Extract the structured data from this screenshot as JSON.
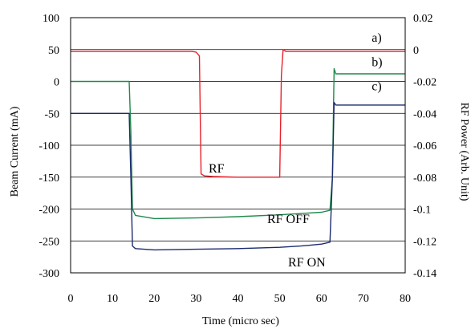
{
  "chart_data": {
    "type": "line",
    "xlabel": "Time (micro sec)",
    "ylabel_left": "Beam Current (mA)",
    "ylabel_right": "RF Power (Arb. Unit)",
    "xlim": [
      0,
      80
    ],
    "ylim_left": [
      -300,
      100
    ],
    "ylim_right": [
      -0.14,
      0.02
    ],
    "x_ticks": [
      0,
      10,
      20,
      30,
      40,
      50,
      60,
      70,
      80
    ],
    "y_left_ticks": [
      100,
      50,
      0,
      -50,
      -100,
      -150,
      -200,
      -250,
      -300
    ],
    "y_right_ticks": [
      "0.02",
      "0",
      "-0.02",
      "-0.04",
      "-0.06",
      "-0.08",
      "-0.1",
      "-0.12",
      "-0.14"
    ],
    "grid": "horizontal",
    "annotations": [
      {
        "text": "a)",
        "x": 72,
        "y": 62
      },
      {
        "text": "b)",
        "x": 72,
        "y": 24
      },
      {
        "text": "c)",
        "x": 72,
        "y": -14
      },
      {
        "text": "RF",
        "x": 33,
        "y": -143
      },
      {
        "text": "RF OFF",
        "x": 47,
        "y": -222
      },
      {
        "text": "RF ON",
        "x": 52,
        "y": -290
      }
    ],
    "series": [
      {
        "color": "#e8202a",
        "x": [
          0,
          29,
          30,
          30.8,
          31.2,
          32,
          34,
          40,
          45,
          50,
          50.4,
          50.8,
          51.5,
          60,
          70,
          80
        ],
        "y": [
          47,
          47,
          46,
          40,
          -145,
          -148,
          -149,
          -150,
          -150,
          -150,
          10,
          50,
          47,
          47,
          47,
          47
        ]
      },
      {
        "color": "#1f8a4c",
        "x": [
          0,
          14,
          14.4,
          14.8,
          15.5,
          20,
          30,
          40,
          50,
          55,
          60,
          62,
          62.6,
          63,
          63.4,
          70,
          80
        ],
        "y": [
          0,
          0,
          -80,
          -200,
          -210,
          -215,
          -214,
          -212,
          -209,
          -207,
          -205,
          -202,
          -150,
          20,
          12,
          12,
          12
        ]
      },
      {
        "color": "#1c2b6e",
        "x": [
          0,
          14,
          14.4,
          14.8,
          15.5,
          20,
          30,
          40,
          50,
          55,
          60,
          62,
          62.6,
          63,
          63.4,
          70,
          80
        ],
        "y": [
          -50,
          -50,
          -150,
          -258,
          -262,
          -264,
          -263,
          -262,
          -260,
          -258,
          -255,
          -252,
          -150,
          -33,
          -37,
          -37,
          -37
        ]
      }
    ]
  }
}
